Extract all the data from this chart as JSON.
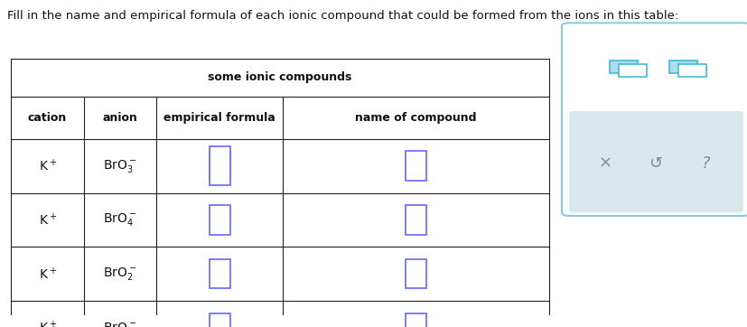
{
  "title_text": "Fill in the name and empirical formula of each ionic compound that could be formed from the ions in this table:",
  "table_title": "some ionic compounds",
  "col_headers": [
    "cation",
    "anion",
    "empirical formula",
    "name of compound"
  ],
  "rows": [
    [
      "K$^+$",
      "BrO$_3^-$"
    ],
    [
      "K$^+$",
      "BrO$_4^-$"
    ],
    [
      "K$^+$",
      "BrO$_2^-$"
    ],
    [
      "K$^+$",
      "BrO$^-$"
    ]
  ],
  "table_bg": "#ffffff",
  "table_border": "#222222",
  "header_text_color": "#111111",
  "cell_text_color": "#111111",
  "input_box_color": "#6666ff",
  "title_color": "#111111",
  "fig_bg": "#ffffff",
  "sidebar_bg": "#e8f6f8",
  "sidebar_border": "#88ccdd"
}
